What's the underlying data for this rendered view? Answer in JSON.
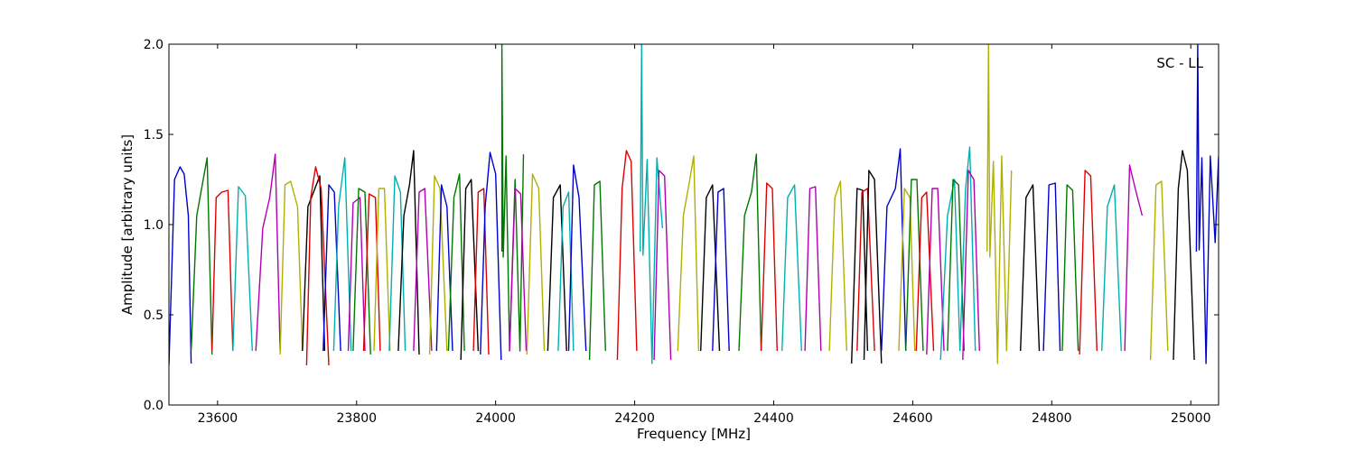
{
  "chart_data": {
    "type": "line",
    "title": "",
    "xlabel": "Frequency [MHz]",
    "ylabel": "Amplitude [arbitrary units]",
    "xlim": [
      23530,
      25040
    ],
    "ylim": [
      0.0,
      2.0
    ],
    "xticks": [
      23600,
      23800,
      24000,
      24200,
      24400,
      24600,
      24800,
      25000
    ],
    "xtick_labels": [
      "23600",
      "23800",
      "24000",
      "24200",
      "24400",
      "24600",
      "24800",
      "25000"
    ],
    "yticks": [
      0.0,
      0.5,
      1.0,
      1.5,
      2.0
    ],
    "ytick_labels": [
      "0.0",
      "0.5",
      "1.0",
      "1.5",
      "2.0"
    ],
    "grid": false,
    "annotation": "SC - LL",
    "annotation_position": "top-right",
    "colors": [
      "#0000cc",
      "#007700",
      "#dd0000",
      "#00b0b0",
      "#b000b0",
      "#b0b000",
      "#000000"
    ],
    "series": [
      {
        "color": "#0000cc",
        "x": [
          23530,
          23538,
          23546,
          23552,
          23558,
          23562
        ],
        "y": [
          0.22,
          1.25,
          1.32,
          1.28,
          1.05,
          0.23
        ]
      },
      {
        "color": "#007700",
        "x": [
          23562,
          23570,
          23578,
          23585,
          23592
        ],
        "y": [
          0.3,
          1.05,
          1.22,
          1.37,
          0.28
        ]
      },
      {
        "color": "#dd0000",
        "x": [
          23592,
          23598,
          23606,
          23615,
          23622
        ],
        "y": [
          0.3,
          1.15,
          1.18,
          1.19,
          0.3
        ]
      },
      {
        "color": "#00b0b0",
        "x": [
          23622,
          23630,
          23640,
          23650
        ],
        "y": [
          0.3,
          1.21,
          1.16,
          0.3
        ]
      },
      {
        "color": "#b000b0",
        "x": [
          23655,
          23665,
          23675,
          23683,
          23690
        ],
        "y": [
          0.3,
          0.98,
          1.15,
          1.39,
          0.3
        ]
      },
      {
        "color": "#b0b000",
        "x": [
          23690,
          23697,
          23705,
          23715,
          23722
        ],
        "y": [
          0.28,
          1.22,
          1.24,
          1.1,
          0.3
        ]
      },
      {
        "color": "#000000",
        "x": [
          23722,
          23730,
          23738,
          23747,
          23754
        ],
        "y": [
          0.3,
          1.1,
          1.18,
          1.27,
          0.3
        ]
      },
      {
        "color": "#dd0000",
        "x": [
          23728,
          23734,
          23741,
          23749,
          23760
        ],
        "y": [
          0.22,
          1.15,
          1.32,
          1.2,
          0.22
        ]
      },
      {
        "color": "#0000cc",
        "x": [
          23752,
          23760,
          23768,
          23777
        ],
        "y": [
          0.3,
          1.22,
          1.18,
          0.3
        ]
      },
      {
        "color": "#00b0b0",
        "x": [
          23767,
          23774,
          23783,
          23792
        ],
        "y": [
          0.3,
          1.1,
          1.37,
          0.3
        ]
      },
      {
        "color": "#b000b0",
        "x": [
          23788,
          23795,
          23805,
          23812
        ],
        "y": [
          0.3,
          1.12,
          1.15,
          0.3
        ]
      },
      {
        "color": "#007700",
        "x": [
          23795,
          23803,
          23812,
          23820
        ],
        "y": [
          0.3,
          1.2,
          1.18,
          0.28
        ]
      },
      {
        "color": "#dd0000",
        "x": [
          23810,
          23818,
          23827,
          23834
        ],
        "y": [
          0.3,
          1.17,
          1.15,
          0.3
        ]
      },
      {
        "color": "#b0b000",
        "x": [
          23825,
          23832,
          23840,
          23848
        ],
        "y": [
          0.3,
          1.2,
          1.2,
          0.3
        ]
      },
      {
        "color": "#00b0b0",
        "x": [
          23847,
          23855,
          23863,
          23870
        ],
        "y": [
          0.3,
          1.27,
          1.18,
          0.3
        ]
      },
      {
        "color": "#000000",
        "x": [
          23860,
          23868,
          23876,
          23882,
          23890
        ],
        "y": [
          0.3,
          1.05,
          1.22,
          1.41,
          0.28
        ]
      },
      {
        "color": "#b000b0",
        "x": [
          23882,
          23890,
          23898,
          23908
        ],
        "y": [
          0.3,
          1.18,
          1.2,
          0.3
        ]
      },
      {
        "color": "#b0b000",
        "x": [
          23905,
          23912,
          23920,
          23930
        ],
        "y": [
          0.28,
          1.27,
          1.2,
          0.3
        ]
      },
      {
        "color": "#0000cc",
        "x": [
          23915,
          23922,
          23930,
          23938
        ],
        "y": [
          0.3,
          1.22,
          1.1,
          0.3
        ]
      },
      {
        "color": "#007700",
        "x": [
          23932,
          23940,
          23948,
          23955
        ],
        "y": [
          0.3,
          1.15,
          1.28,
          0.3
        ]
      },
      {
        "color": "#000000",
        "x": [
          23950,
          23957,
          23965,
          23975
        ],
        "y": [
          0.25,
          1.2,
          1.25,
          0.3
        ]
      },
      {
        "color": "#dd0000",
        "x": [
          23968,
          23975,
          23983,
          23990
        ],
        "y": [
          0.3,
          1.18,
          1.2,
          0.28
        ]
      },
      {
        "color": "#0000cc",
        "x": [
          23978,
          23985,
          23992,
          24000,
          24008
        ],
        "y": [
          0.28,
          1.1,
          1.4,
          1.28,
          0.25
        ]
      },
      {
        "color": "#007700",
        "x": [
          24009,
          24009,
          24011,
          24015,
          24020,
          24028,
          24035,
          24040
        ],
        "y": [
          0.85,
          2.0,
          0.82,
          1.38,
          0.3,
          1.25,
          0.3,
          1.39
        ]
      },
      {
        "color": "#b000b0",
        "x": [
          24020,
          24028,
          24036,
          24044
        ],
        "y": [
          0.3,
          1.2,
          1.17,
          0.3
        ]
      },
      {
        "color": "#b0b000",
        "x": [
          24045,
          24053,
          24062,
          24070
        ],
        "y": [
          0.28,
          1.28,
          1.2,
          0.3
        ]
      },
      {
        "color": "#000000",
        "x": [
          24075,
          24083,
          24093,
          24102
        ],
        "y": [
          0.3,
          1.15,
          1.22,
          0.3
        ]
      },
      {
        "color": "#00b0b0",
        "x": [
          24090,
          24097,
          24105,
          24112
        ],
        "y": [
          0.3,
          1.1,
          1.18,
          0.3
        ]
      },
      {
        "color": "#0000cc",
        "x": [
          24105,
          24112,
          24120,
          24130
        ],
        "y": [
          0.3,
          1.33,
          1.15,
          0.3
        ]
      },
      {
        "color": "#007700",
        "x": [
          24135,
          24142,
          24150,
          24158
        ],
        "y": [
          0.25,
          1.22,
          1.24,
          0.3
        ]
      },
      {
        "color": "#dd0000",
        "x": [
          24175,
          24182,
          24188,
          24195,
          24203
        ],
        "y": [
          0.25,
          1.2,
          1.41,
          1.35,
          0.3
        ]
      },
      {
        "color": "#00b0b0",
        "x": [
          24208,
          24210,
          24212,
          24218,
          24225,
          24232,
          24240
        ],
        "y": [
          0.85,
          2.0,
          0.83,
          1.36,
          0.23,
          1.37,
          0.98
        ]
      },
      {
        "color": "#b000b0",
        "x": [
          24228,
          24235,
          24243,
          24252
        ],
        "y": [
          0.25,
          1.3,
          1.27,
          0.25
        ]
      },
      {
        "color": "#b0b000",
        "x": [
          24262,
          24270,
          24278,
          24285,
          24292
        ],
        "y": [
          0.3,
          1.05,
          1.22,
          1.38,
          0.3
        ]
      },
      {
        "color": "#000000",
        "x": [
          24295,
          24303,
          24312,
          24322
        ],
        "y": [
          0.3,
          1.15,
          1.22,
          0.3
        ]
      },
      {
        "color": "#0000cc",
        "x": [
          24312,
          24320,
          24328,
          24336
        ],
        "y": [
          0.3,
          1.18,
          1.2,
          0.3
        ]
      },
      {
        "color": "#007700",
        "x": [
          24350,
          24358,
          24368,
          24375,
          24382
        ],
        "y": [
          0.3,
          1.05,
          1.18,
          1.39,
          0.3
        ]
      },
      {
        "color": "#dd0000",
        "x": [
          24382,
          24390,
          24398,
          24405
        ],
        "y": [
          0.3,
          1.23,
          1.2,
          0.3
        ]
      },
      {
        "color": "#00b0b0",
        "x": [
          24412,
          24420,
          24430,
          24440
        ],
        "y": [
          0.3,
          1.15,
          1.22,
          0.3
        ]
      },
      {
        "color": "#b000b0",
        "x": [
          24445,
          24452,
          24460,
          24468
        ],
        "y": [
          0.3,
          1.2,
          1.21,
          0.3
        ]
      },
      {
        "color": "#b0b000",
        "x": [
          24480,
          24488,
          24496,
          24505
        ],
        "y": [
          0.3,
          1.15,
          1.24,
          0.3
        ]
      },
      {
        "color": "#000000",
        "x": [
          24512,
          24520,
          24528,
          24535
        ],
        "y": [
          0.23,
          1.2,
          1.19,
          0.3
        ]
      },
      {
        "color": "#dd0000",
        "x": [
          24520,
          24527,
          24535,
          24545
        ],
        "y": [
          0.3,
          1.18,
          1.2,
          0.3
        ]
      },
      {
        "color": "#000000",
        "x": [
          24530,
          24537,
          24545,
          24555
        ],
        "y": [
          0.25,
          1.3,
          1.25,
          0.23
        ]
      },
      {
        "color": "#0000cc",
        "x": [
          24555,
          24563,
          24575,
          24582,
          24590
        ],
        "y": [
          0.3,
          1.1,
          1.2,
          1.42,
          0.3
        ]
      },
      {
        "color": "#b0b000",
        "x": [
          24580,
          24588,
          24596,
          24603
        ],
        "y": [
          0.3,
          1.2,
          1.15,
          0.3
        ]
      },
      {
        "color": "#007700",
        "x": [
          24590,
          24598,
          24606,
          24615
        ],
        "y": [
          0.3,
          1.25,
          1.25,
          0.3
        ]
      },
      {
        "color": "#dd0000",
        "x": [
          24605,
          24613,
          24620,
          24630
        ],
        "y": [
          0.3,
          1.15,
          1.18,
          0.3
        ]
      },
      {
        "color": "#b000b0",
        "x": [
          24620,
          24628,
          24636,
          24645
        ],
        "y": [
          0.28,
          1.2,
          1.2,
          0.3
        ]
      },
      {
        "color": "#00b0b0",
        "x": [
          24640,
          24650,
          24660,
          24668
        ],
        "y": [
          0.25,
          1.05,
          1.25,
          0.3
        ]
      },
      {
        "color": "#007700",
        "x": [
          24650,
          24658,
          24666,
          24674
        ],
        "y": [
          0.3,
          1.25,
          1.22,
          0.3
        ]
      },
      {
        "color": "#00b0b0",
        "x": [
          24668,
          24676,
          24682,
          24690
        ],
        "y": [
          0.3,
          1.2,
          1.43,
          0.3
        ]
      },
      {
        "color": "#b000b0",
        "x": [
          24672,
          24680,
          24688,
          24696
        ],
        "y": [
          0.25,
          1.3,
          1.25,
          0.3
        ]
      },
      {
        "color": "#b0b000",
        "x": [
          24707,
          24709,
          24711,
          24716,
          24722,
          24728,
          24735,
          24742
        ],
        "y": [
          0.85,
          2.0,
          0.82,
          1.35,
          0.23,
          1.38,
          0.3,
          1.3
        ]
      },
      {
        "color": "#000000",
        "x": [
          24755,
          24763,
          24773,
          24782
        ],
        "y": [
          0.3,
          1.15,
          1.22,
          0.3
        ]
      },
      {
        "color": "#0000cc",
        "x": [
          24788,
          24796,
          24805,
          24812
        ],
        "y": [
          0.3,
          1.22,
          1.23,
          0.3
        ]
      },
      {
        "color": "#007700",
        "x": [
          24815,
          24822,
          24830,
          24838
        ],
        "y": [
          0.3,
          1.22,
          1.19,
          0.3
        ]
      },
      {
        "color": "#dd0000",
        "x": [
          24840,
          24848,
          24856,
          24865
        ],
        "y": [
          0.28,
          1.3,
          1.27,
          0.3
        ]
      },
      {
        "color": "#00b0b0",
        "x": [
          24872,
          24880,
          24890,
          24900
        ],
        "y": [
          0.3,
          1.1,
          1.22,
          0.3
        ]
      },
      {
        "color": "#b000b0",
        "x": [
          24905,
          24912,
          24920,
          24930
        ],
        "y": [
          0.3,
          1.33,
          1.2,
          1.05
        ]
      },
      {
        "color": "#b0b000",
        "x": [
          24942,
          24950,
          24958,
          24967
        ],
        "y": [
          0.25,
          1.22,
          1.24,
          0.3
        ]
      },
      {
        "color": "#000000",
        "x": [
          24975,
          24982,
          24988,
          24995,
          25005
        ],
        "y": [
          0.25,
          1.2,
          1.41,
          1.3,
          0.25
        ]
      },
      {
        "color": "#0000cc",
        "x": [
          25008,
          25010,
          25012,
          25016,
          25022,
          25028,
          25035,
          25040
        ],
        "y": [
          0.85,
          2.0,
          0.86,
          1.37,
          0.23,
          1.38,
          0.9,
          1.38
        ]
      }
    ]
  }
}
